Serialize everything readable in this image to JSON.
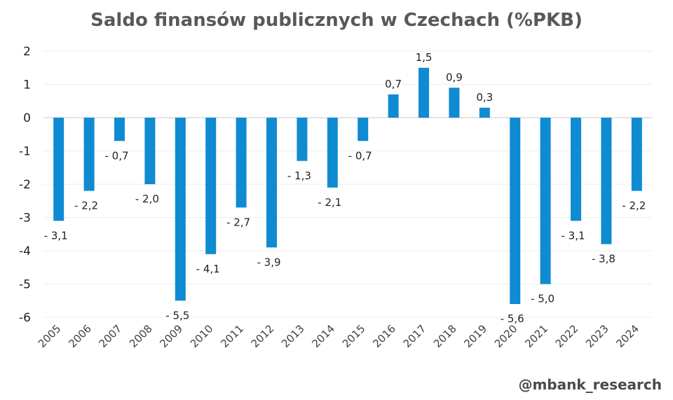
{
  "title": "Saldo finansów publicznych w Czechach (%PKB)",
  "watermark": "@mbank_research",
  "colors": {
    "bar": "#0F8BD2",
    "grid": "#EDEDED",
    "zero_line": "#D9D9D9"
  },
  "chart_data": {
    "type": "bar",
    "title": "Saldo finansów publicznych w Czechach (%PKB)",
    "xlabel": "",
    "ylabel": "",
    "ylim": [
      -6,
      2
    ],
    "yticks": [
      "2",
      "1",
      "0",
      "-1",
      "-2",
      "-3",
      "-4",
      "-5",
      "-6"
    ],
    "grid": true,
    "categories": [
      "2005",
      "2006",
      "2007",
      "2008",
      "2009",
      "2010",
      "2011",
      "2012",
      "2013",
      "2014",
      "2015",
      "2016",
      "2017",
      "2018",
      "2019",
      "2020",
      "2021",
      "2022",
      "2023",
      "2024"
    ],
    "values": [
      -3.1,
      -2.2,
      -0.7,
      -2.0,
      -5.5,
      -4.1,
      -2.7,
      -3.9,
      -1.3,
      -2.1,
      -0.7,
      0.7,
      1.5,
      0.9,
      0.3,
      -5.6,
      -5.0,
      -3.1,
      -3.8,
      -2.2
    ],
    "data_labels": [
      "- 3,1",
      "- 2,2",
      "- 0,7",
      "- 2,0",
      "- 5,5",
      "- 4,1",
      "- 2,7",
      "- 3,9",
      "- 1,3",
      "- 2,1",
      "- 0,7",
      "0,7",
      "1,5",
      "0,9",
      "0,3",
      "- 5,6",
      "- 5,0",
      "- 3,1",
      "- 3,8",
      "- 2,2"
    ]
  }
}
